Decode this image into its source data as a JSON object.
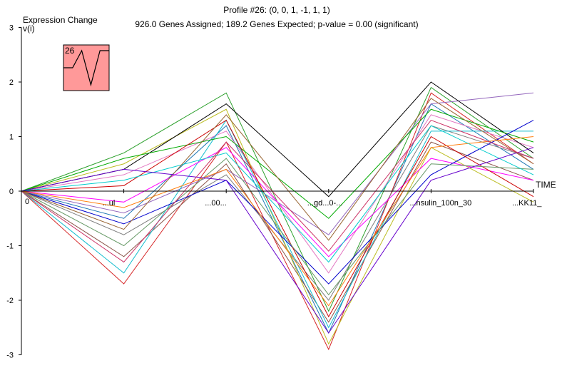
{
  "chart_data": {
    "type": "line",
    "title": "Profile #26: (0, 0, 1, -1, 1, 1)",
    "subtitle": "926.0 Genes Assigned; 189.2 Genes Expected; p-value = 0.00 (significant)",
    "ylabel": "Expression Change",
    "ylabel_sub": "v(i)",
    "xlabel": "TIME",
    "ylim": [
      -3,
      3
    ],
    "ytick_labels": [
      "3",
      "2",
      "1",
      "0",
      "-1",
      "-2",
      "-3"
    ],
    "x_positions": [
      0,
      1,
      2,
      3,
      4,
      5
    ],
    "x_tick_labels": [
      "0",
      "",
      "",
      "",
      "",
      ""
    ],
    "partial_tick_labels": [
      "...ul",
      "...00...",
      "...gd...0-...",
      "...nsulin_100n_30",
      "...KK11_"
    ],
    "profile_model": [
      0,
      0,
      1,
      -1,
      1,
      1
    ],
    "profile_number": "26",
    "profile_box_color": "#ff9999",
    "line_colors": [
      "#1f77b4",
      "#d62728",
      "#2ca02c",
      "#9467bd",
      "#8c564b",
      "#e377c2",
      "#7f7f7f",
      "#bcbd22",
      "#17becf",
      "#000000",
      "#ff00ff",
      "#00aa00",
      "#0000cc",
      "#cc0000",
      "#669966",
      "#ff7f0e",
      "#00cccc",
      "#996633",
      "#6600cc",
      "#cc3366",
      "#33cc33",
      "#3366ff",
      "#999900",
      "#ff66cc"
    ],
    "series": [
      {
        "values": [
          0,
          -0.5,
          1.2,
          -2.6,
          1.6,
          0.4
        ]
      },
      {
        "values": [
          0,
          -1.7,
          0.9,
          -2.9,
          1.8,
          0.5
        ]
      },
      {
        "values": [
          0,
          0.7,
          1.8,
          -2.2,
          1.9,
          0.6
        ]
      },
      {
        "values": [
          0,
          -0.4,
          0.4,
          -0.8,
          1.6,
          1.8
        ]
      },
      {
        "values": [
          0,
          -1.2,
          0.5,
          -2.4,
          0.9,
          0.2
        ]
      },
      {
        "values": [
          0,
          0.3,
          1.1,
          -1.5,
          1.4,
          0.8
        ]
      },
      {
        "values": [
          0,
          -0.8,
          0.3,
          -2.0,
          1.2,
          0.6
        ]
      },
      {
        "values": [
          0,
          0.5,
          1.5,
          -2.8,
          0.8,
          -0.2
        ]
      },
      {
        "values": [
          0,
          -1.5,
          1.3,
          -2.5,
          1.1,
          1.1
        ]
      },
      {
        "values": [
          0,
          0.4,
          1.6,
          -0.1,
          2.0,
          0.7
        ]
      },
      {
        "values": [
          0,
          -0.2,
          0.8,
          -1.2,
          0.6,
          0.2
        ]
      },
      {
        "values": [
          0,
          0.6,
          1.0,
          -0.5,
          1.5,
          0.9
        ]
      },
      {
        "values": [
          0,
          -0.6,
          0.2,
          -1.7,
          0.3,
          1.3
        ]
      },
      {
        "values": [
          0,
          0.1,
          1.3,
          -2.3,
          1.0,
          -0.1
        ]
      },
      {
        "values": [
          0,
          -1.0,
          0.6,
          -1.9,
          0.5,
          0.4
        ]
      },
      {
        "values": [
          0,
          -0.3,
          0.4,
          -2.1,
          0.8,
          1.0
        ]
      },
      {
        "values": [
          0,
          0.2,
          0.7,
          -1.3,
          1.2,
          0.3
        ]
      },
      {
        "values": [
          0,
          -0.7,
          1.4,
          -0.9,
          1.7,
          0.5
        ]
      },
      {
        "values": [
          0,
          0.4,
          0.2,
          -2.6,
          0.2,
          0.8
        ]
      },
      {
        "values": [
          0,
          -1.3,
          0.9,
          -1.1,
          1.3,
          0.6
        ]
      }
    ]
  }
}
